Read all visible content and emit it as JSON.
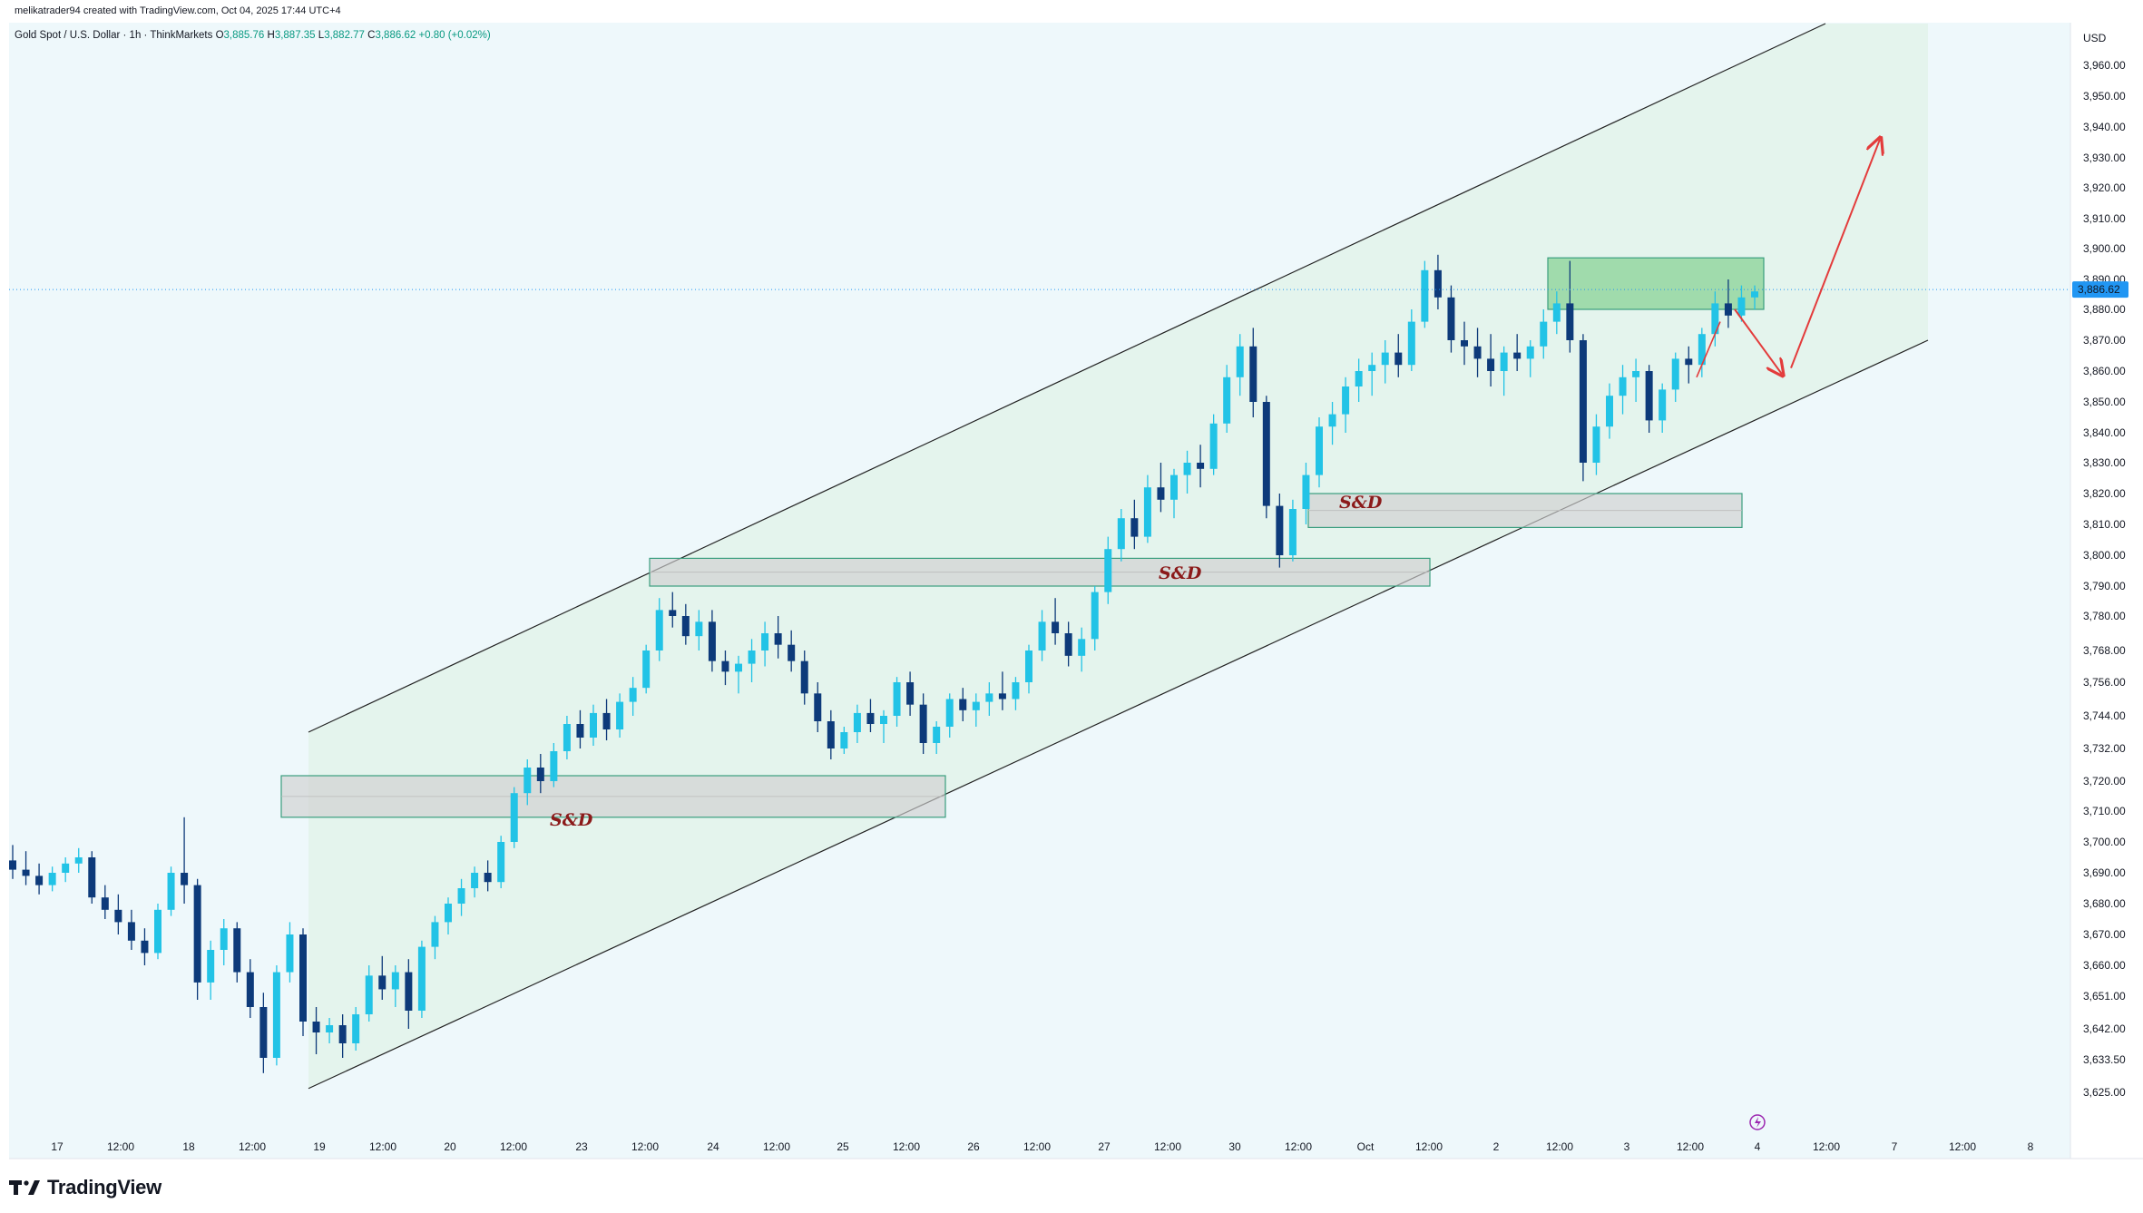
{
  "header": {
    "attribution": "melikatrader94 created with TradingView.com, Oct 04, 2025 17:44 UTC+4"
  },
  "symbol": {
    "title": "Gold Spot / U.S. Dollar · 1h · ThinkMarkets",
    "open_label": "O",
    "open": "3,885.76",
    "high_label": "H",
    "high": "3,887.35",
    "low_label": "L",
    "low": "3,882.77",
    "close_label": "C",
    "close": "3,886.62",
    "change": "+0.80 (+0.02%)"
  },
  "price_axis": {
    "currency": "USD",
    "current_price": "3,886.62"
  },
  "brand": {
    "name": "TradingView"
  },
  "colors": {
    "up": "#22c3e6",
    "down": "#0d3a7a",
    "channel_fill": "#e2f3ea",
    "zone_fill": "#cfcfcf",
    "zone_border": "#3a9e7f",
    "supply_fill": "#8fd49b",
    "arrow": "#e33b3b",
    "last_price": "#2196f3"
  },
  "chart_data": {
    "type": "candlestick",
    "title": "Gold Spot / U.S. Dollar",
    "interval": "1h",
    "y_ticks": [
      "3,960.00",
      "3,950.00",
      "3,940.00",
      "3,930.00",
      "3,920.00",
      "3,910.00",
      "3,900.00",
      "3,890.00",
      "3,880.00",
      "3,870.00",
      "3,860.00",
      "3,850.00",
      "3,840.00",
      "3,830.00",
      "3,820.00",
      "3,810.00",
      "3,800.00",
      "3,790.00",
      "3,780.00",
      "3,768.00",
      "3,756.00",
      "3,744.00",
      "3,732.00",
      "3,720.00",
      "3,710.00",
      "3,700.00",
      "3,690.00",
      "3,680.00",
      "3,670.00",
      "3,660.00",
      "3,651.00",
      "3,642.00",
      "3,633.50",
      "3,625.00"
    ],
    "x_ticks": [
      "17",
      "12:00",
      "18",
      "12:00",
      "19",
      "12:00",
      "20",
      "12:00",
      "23",
      "12:00",
      "24",
      "12:00",
      "25",
      "12:00",
      "26",
      "12:00",
      "27",
      "12:00",
      "30",
      "12:00",
      "Oct",
      "12:00",
      "2",
      "12:00",
      "3",
      "12:00",
      "4",
      "12:00",
      "7",
      "12:00",
      "8"
    ],
    "ylim": [
      3625,
      3966
    ],
    "candles": [
      [
        3694,
        3699,
        3688,
        3691
      ],
      [
        3691,
        3697,
        3686,
        3689
      ],
      [
        3689,
        3693,
        3683,
        3686
      ],
      [
        3686,
        3692,
        3684,
        3690
      ],
      [
        3690,
        3695,
        3687,
        3693
      ],
      [
        3693,
        3698,
        3690,
        3695
      ],
      [
        3695,
        3697,
        3680,
        3682
      ],
      [
        3682,
        3686,
        3675,
        3678
      ],
      [
        3678,
        3683,
        3670,
        3674
      ],
      [
        3674,
        3678,
        3665,
        3668
      ],
      [
        3668,
        3672,
        3660,
        3664
      ],
      [
        3664,
        3680,
        3662,
        3678
      ],
      [
        3678,
        3692,
        3676,
        3690
      ],
      [
        3690,
        3708,
        3680,
        3686
      ],
      [
        3686,
        3688,
        3650,
        3655
      ],
      [
        3655,
        3668,
        3650,
        3665
      ],
      [
        3665,
        3675,
        3660,
        3672
      ],
      [
        3672,
        3674,
        3655,
        3658
      ],
      [
        3658,
        3662,
        3645,
        3648
      ],
      [
        3648,
        3652,
        3630,
        3634
      ],
      [
        3634,
        3660,
        3632,
        3658
      ],
      [
        3658,
        3674,
        3655,
        3670
      ],
      [
        3670,
        3672,
        3640,
        3644
      ],
      [
        3644,
        3648,
        3635,
        3641
      ],
      [
        3641,
        3645,
        3638,
        3643
      ],
      [
        3643,
        3646,
        3634,
        3638
      ],
      [
        3638,
        3648,
        3636,
        3646
      ],
      [
        3646,
        3660,
        3644,
        3657
      ],
      [
        3657,
        3663,
        3650,
        3653
      ],
      [
        3653,
        3660,
        3648,
        3658
      ],
      [
        3658,
        3662,
        3642,
        3647
      ],
      [
        3647,
        3668,
        3645,
        3666
      ],
      [
        3666,
        3676,
        3662,
        3674
      ],
      [
        3674,
        3682,
        3670,
        3680
      ],
      [
        3680,
        3688,
        3676,
        3685
      ],
      [
        3685,
        3692,
        3682,
        3690
      ],
      [
        3690,
        3694,
        3684,
        3687
      ],
      [
        3687,
        3702,
        3685,
        3700
      ],
      [
        3700,
        3718,
        3698,
        3716
      ],
      [
        3716,
        3728,
        3712,
        3725
      ],
      [
        3725,
        3730,
        3716,
        3720
      ],
      [
        3720,
        3734,
        3718,
        3731
      ],
      [
        3731,
        3744,
        3728,
        3741
      ],
      [
        3741,
        3746,
        3732,
        3736
      ],
      [
        3736,
        3748,
        3733,
        3745
      ],
      [
        3745,
        3750,
        3735,
        3739
      ],
      [
        3739,
        3752,
        3736,
        3749
      ],
      [
        3749,
        3758,
        3744,
        3754
      ],
      [
        3754,
        3770,
        3752,
        3768
      ],
      [
        3768,
        3786,
        3764,
        3782
      ],
      [
        3782,
        3788,
        3776,
        3780
      ],
      [
        3780,
        3784,
        3770,
        3773
      ],
      [
        3773,
        3782,
        3768,
        3778
      ],
      [
        3778,
        3782,
        3760,
        3764
      ],
      [
        3764,
        3768,
        3755,
        3760
      ],
      [
        3760,
        3766,
        3752,
        3763
      ],
      [
        3763,
        3772,
        3756,
        3768
      ],
      [
        3768,
        3778,
        3762,
        3774
      ],
      [
        3774,
        3780,
        3765,
        3770
      ],
      [
        3770,
        3775,
        3760,
        3764
      ],
      [
        3764,
        3768,
        3748,
        3752
      ],
      [
        3752,
        3756,
        3738,
        3742
      ],
      [
        3742,
        3746,
        3728,
        3732
      ],
      [
        3732,
        3740,
        3730,
        3738
      ],
      [
        3738,
        3748,
        3734,
        3745
      ],
      [
        3745,
        3750,
        3738,
        3741
      ],
      [
        3741,
        3746,
        3734,
        3744
      ],
      [
        3744,
        3758,
        3740,
        3756
      ],
      [
        3756,
        3760,
        3744,
        3748
      ],
      [
        3748,
        3752,
        3730,
        3734
      ],
      [
        3734,
        3742,
        3730,
        3740
      ],
      [
        3740,
        3752,
        3736,
        3750
      ],
      [
        3750,
        3754,
        3742,
        3746
      ],
      [
        3746,
        3752,
        3740,
        3749
      ],
      [
        3749,
        3756,
        3744,
        3752
      ],
      [
        3752,
        3760,
        3746,
        3750
      ],
      [
        3750,
        3758,
        3746,
        3756
      ],
      [
        3756,
        3770,
        3752,
        3768
      ],
      [
        3768,
        3782,
        3764,
        3778
      ],
      [
        3778,
        3786,
        3770,
        3774
      ],
      [
        3774,
        3778,
        3762,
        3766
      ],
      [
        3766,
        3776,
        3760,
        3772
      ],
      [
        3772,
        3790,
        3768,
        3788
      ],
      [
        3788,
        3806,
        3784,
        3802
      ],
      [
        3802,
        3815,
        3798,
        3812
      ],
      [
        3812,
        3818,
        3802,
        3806
      ],
      [
        3806,
        3826,
        3804,
        3822
      ],
      [
        3822,
        3830,
        3814,
        3818
      ],
      [
        3818,
        3828,
        3812,
        3826
      ],
      [
        3826,
        3834,
        3820,
        3830
      ],
      [
        3830,
        3836,
        3822,
        3828
      ],
      [
        3828,
        3846,
        3826,
        3843
      ],
      [
        3843,
        3862,
        3840,
        3858
      ],
      [
        3858,
        3872,
        3852,
        3868
      ],
      [
        3868,
        3874,
        3845,
        3850
      ],
      [
        3850,
        3852,
        3812,
        3816
      ],
      [
        3816,
        3820,
        3796,
        3800
      ],
      [
        3800,
        3818,
        3798,
        3815
      ],
      [
        3815,
        3830,
        3810,
        3826
      ],
      [
        3826,
        3845,
        3822,
        3842
      ],
      [
        3842,
        3850,
        3836,
        3846
      ],
      [
        3846,
        3858,
        3840,
        3855
      ],
      [
        3855,
        3864,
        3850,
        3860
      ],
      [
        3860,
        3866,
        3852,
        3862
      ],
      [
        3862,
        3870,
        3856,
        3866
      ],
      [
        3866,
        3872,
        3858,
        3862
      ],
      [
        3862,
        3880,
        3860,
        3876
      ],
      [
        3876,
        3896,
        3874,
        3893
      ],
      [
        3893,
        3898,
        3880,
        3884
      ],
      [
        3884,
        3888,
        3866,
        3870
      ],
      [
        3870,
        3876,
        3862,
        3868
      ],
      [
        3868,
        3874,
        3858,
        3864
      ],
      [
        3864,
        3872,
        3855,
        3860
      ],
      [
        3860,
        3868,
        3852,
        3866
      ],
      [
        3866,
        3872,
        3860,
        3864
      ],
      [
        3864,
        3870,
        3858,
        3868
      ],
      [
        3868,
        3880,
        3864,
        3876
      ],
      [
        3876,
        3886,
        3872,
        3882
      ],
      [
        3882,
        3896,
        3866,
        3870
      ],
      [
        3870,
        3872,
        3824,
        3830
      ],
      [
        3830,
        3846,
        3826,
        3842
      ],
      [
        3842,
        3856,
        3838,
        3852
      ],
      [
        3852,
        3862,
        3846,
        3858
      ],
      [
        3858,
        3864,
        3850,
        3860
      ],
      [
        3860,
        3862,
        3840,
        3844
      ],
      [
        3844,
        3856,
        3840,
        3854
      ],
      [
        3854,
        3866,
        3850,
        3864
      ],
      [
        3864,
        3868,
        3856,
        3862
      ],
      [
        3862,
        3874,
        3858,
        3872
      ],
      [
        3872,
        3886,
        3868,
        3882
      ],
      [
        3882,
        3890,
        3874,
        3878
      ],
      [
        3878,
        3888,
        3876,
        3884
      ],
      [
        3884,
        3888,
        3880,
        3886
      ]
    ],
    "channel": {
      "upper": [
        [
          "19",
          3738
        ],
        [
          "Oct+",
          3970
        ]
      ],
      "lower": [
        [
          "19",
          3626
        ],
        [
          "7+",
          3870
        ]
      ]
    },
    "zones": [
      {
        "label": "S&D",
        "top": 3722,
        "bottom": 3708
      },
      {
        "label": "S&D",
        "top": 3799,
        "bottom": 3790
      },
      {
        "label": "S&D",
        "top": 3820,
        "bottom": 3809
      },
      {
        "label": "",
        "top": 3897,
        "bottom": 3880
      }
    ],
    "projection": {
      "down_to": 3859,
      "up_to": 3936
    }
  }
}
